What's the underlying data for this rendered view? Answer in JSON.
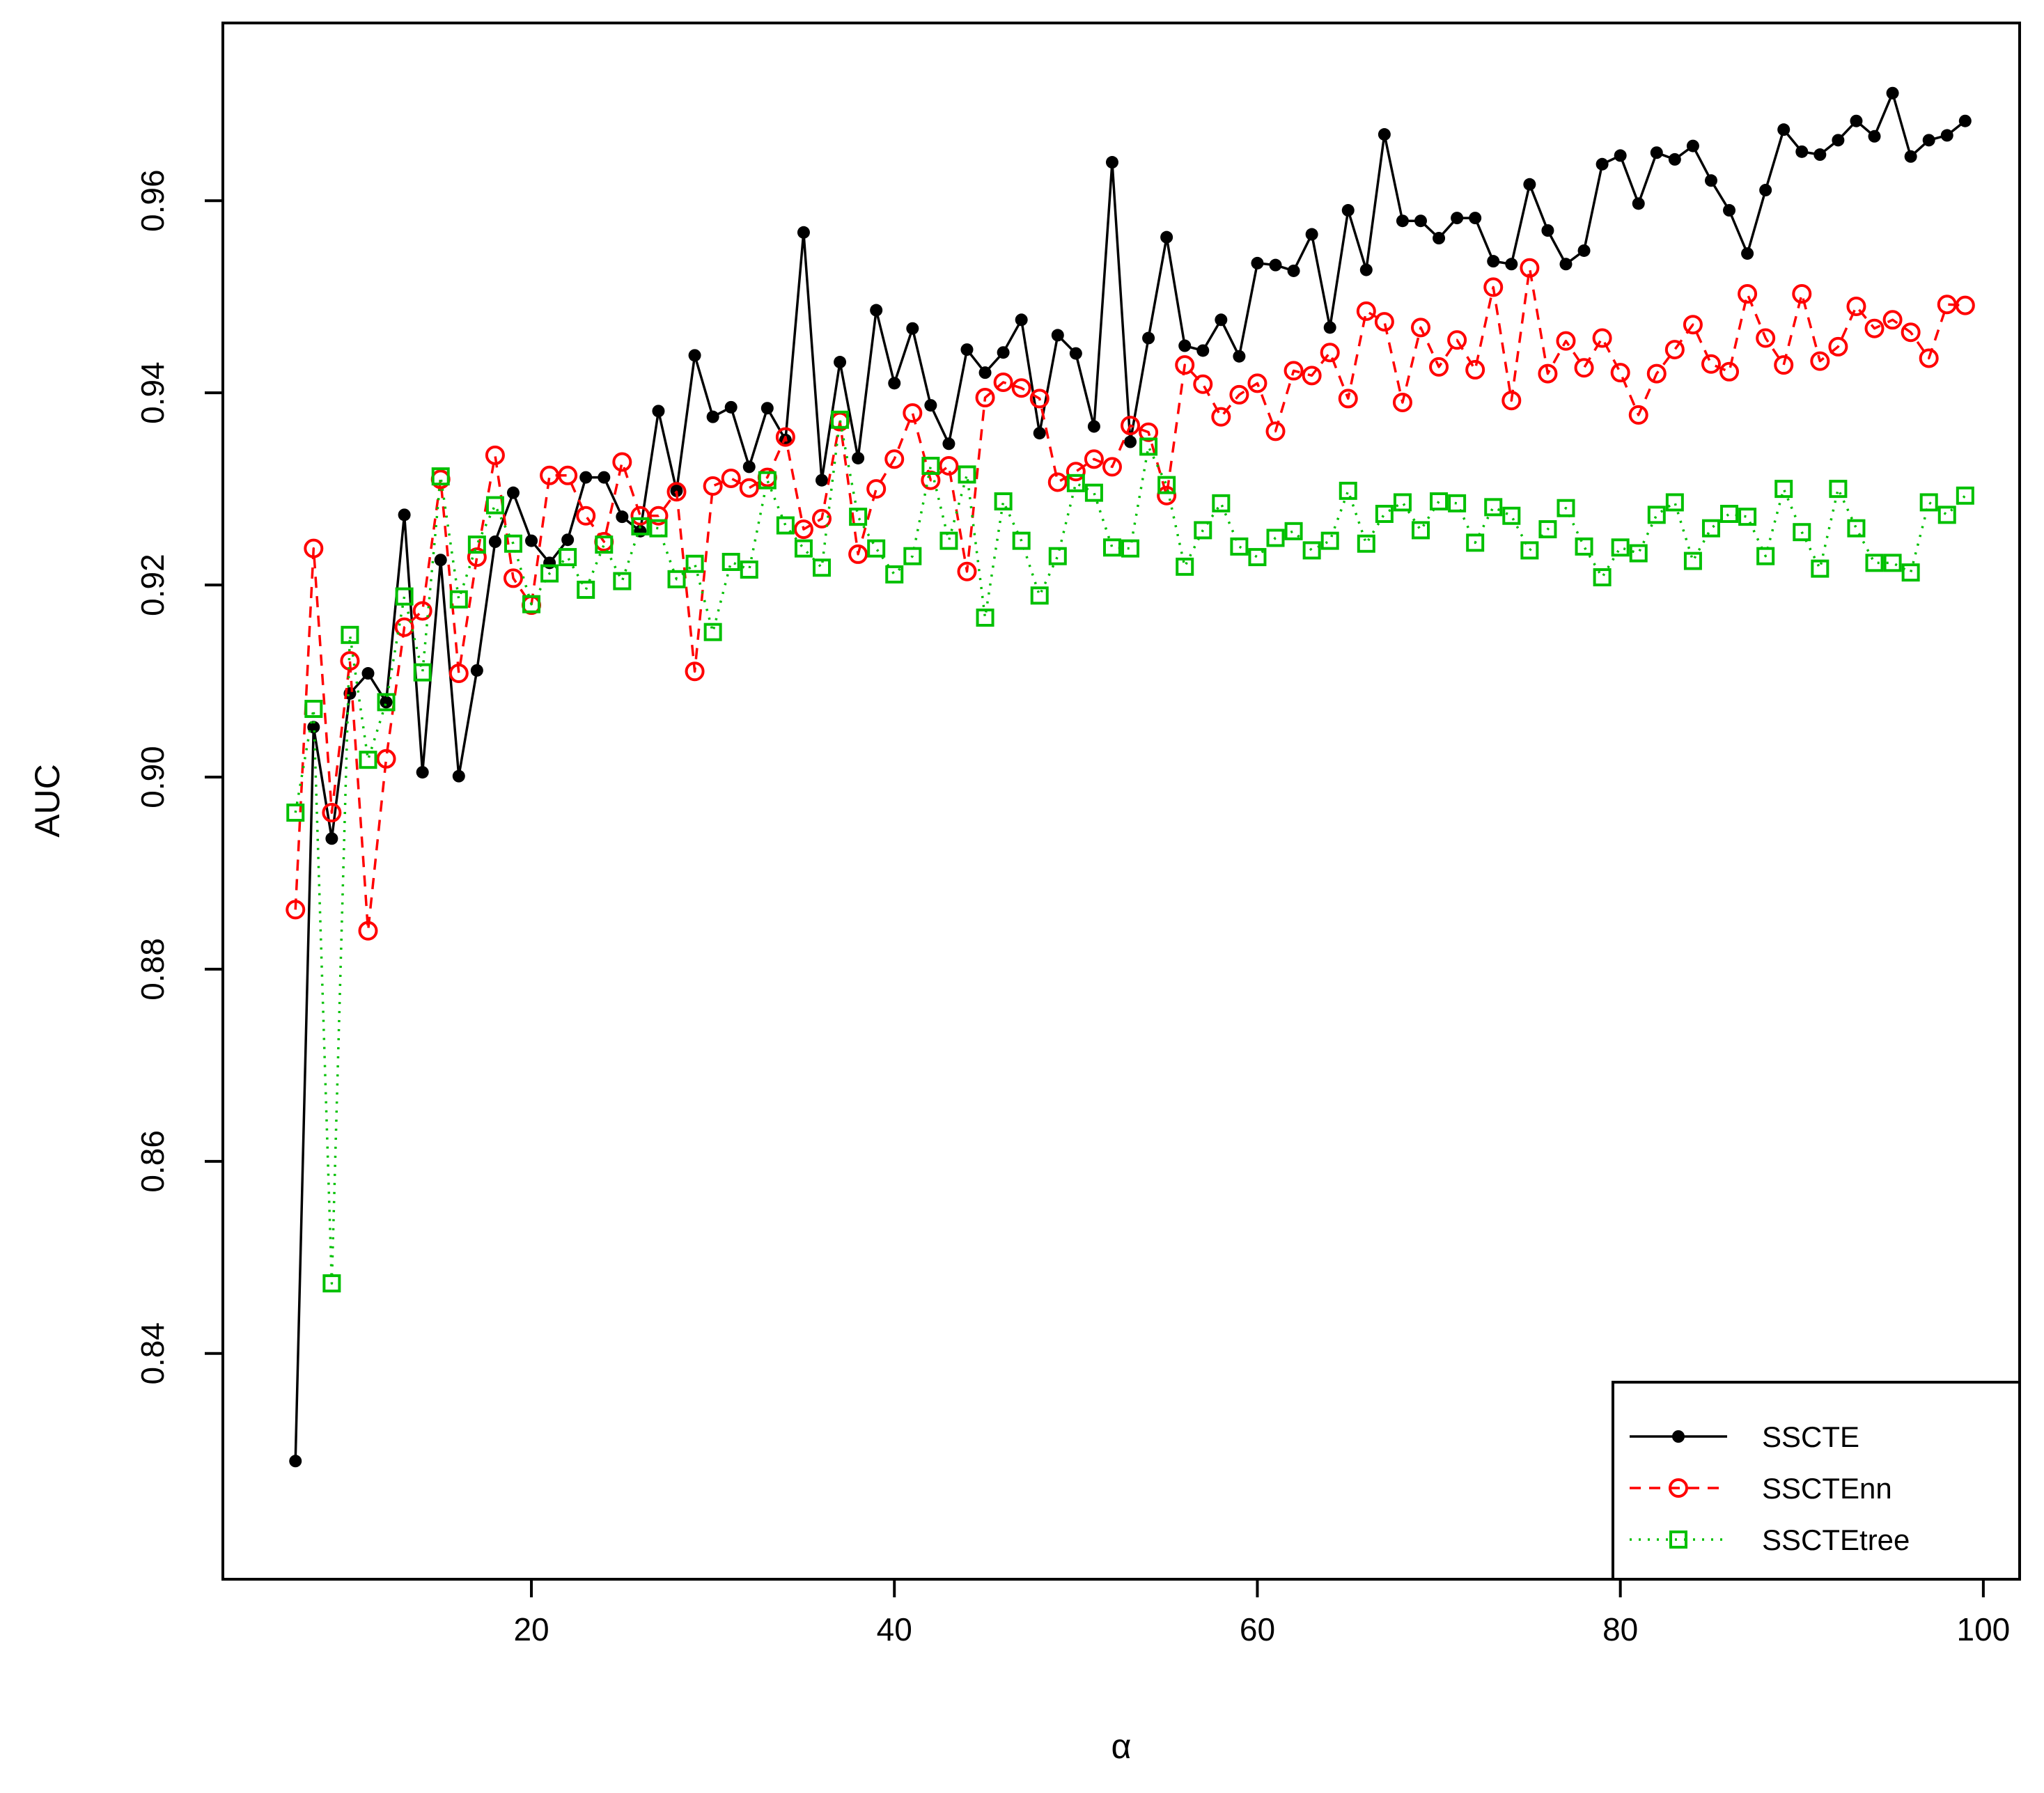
{
  "chart_data": {
    "type": "line",
    "xlabel": "α",
    "ylabel": "AUC",
    "xlim": [
      3,
      102
    ],
    "ylim": [
      0.8165,
      0.9785
    ],
    "xticks": [
      "20",
      "40",
      "60",
      "80",
      "100"
    ],
    "yticks": [
      "0.84",
      "0.86",
      "0.88",
      "0.90",
      "0.92",
      "0.94",
      "0.96"
    ],
    "legend_position": "bottom-right",
    "x": [
      7,
      8,
      9,
      10,
      11,
      12,
      13,
      14,
      15,
      16,
      17,
      18,
      19,
      20,
      21,
      22,
      23,
      24,
      25,
      26,
      27,
      28,
      29,
      30,
      31,
      32,
      33,
      34,
      35,
      36,
      37,
      38,
      39,
      40,
      41,
      42,
      43,
      44,
      45,
      46,
      47,
      48,
      49,
      50,
      51,
      52,
      53,
      54,
      55,
      56,
      57,
      58,
      59,
      60,
      61,
      62,
      63,
      64,
      65,
      66,
      67,
      68,
      69,
      70,
      71,
      72,
      73,
      74,
      75,
      76,
      77,
      78,
      79,
      80,
      81,
      82,
      83,
      84,
      85,
      86,
      87,
      88,
      89,
      90,
      91,
      92,
      93,
      94,
      95,
      96,
      97,
      98,
      99
    ],
    "series": [
      {
        "name": "SSCTE",
        "color": "#000000",
        "line": "solid",
        "marker": "filled-circle",
        "values": [
          0.8288,
          0.9052,
          0.8936,
          0.9087,
          0.9108,
          0.9078,
          0.9273,
          0.9005,
          0.9226,
          0.9001,
          0.9111,
          0.9245,
          0.9296,
          0.9246,
          0.9223,
          0.9247,
          0.9312,
          0.9312,
          0.9271,
          0.9256,
          0.9381,
          0.9298,
          0.9439,
          0.9375,
          0.9385,
          0.9323,
          0.9384,
          0.9351,
          0.9567,
          0.9309,
          0.9432,
          0.9332,
          0.9486,
          0.941,
          0.9467,
          0.9387,
          0.9347,
          0.9445,
          0.9421,
          0.9442,
          0.9476,
          0.9358,
          0.946,
          0.9441,
          0.9365,
          0.964,
          0.9349,
          0.9457,
          0.9562,
          0.9449,
          0.9444,
          0.9476,
          0.9438,
          0.9535,
          0.9533,
          0.9527,
          0.9565,
          0.9468,
          0.959,
          0.9528,
          0.9669,
          0.9579,
          0.9579,
          0.9561,
          0.9582,
          0.9582,
          0.9537,
          0.9534,
          0.9617,
          0.9569,
          0.9534,
          0.9548,
          0.9638,
          0.9647,
          0.9597,
          0.965,
          0.9643,
          0.9657,
          0.9621,
          0.959,
          0.9545,
          0.9611,
          0.9674,
          0.9651,
          0.9648,
          0.9663,
          0.9683,
          0.9667,
          0.9712,
          0.9646,
          0.9663,
          0.9668,
          0.9683
        ]
      },
      {
        "name": "SSCTEnn",
        "color": "#ff0000",
        "line": "dashed",
        "marker": "open-circle",
        "values": [
          0.8862,
          0.9238,
          0.8963,
          0.9121,
          0.884,
          0.9019,
          0.9156,
          0.9173,
          0.931,
          0.9108,
          0.9229,
          0.9335,
          0.9207,
          0.9179,
          0.9314,
          0.9314,
          0.9272,
          0.9245,
          0.9328,
          0.9272,
          0.9272,
          0.9297,
          0.911,
          0.9303,
          0.9311,
          0.9301,
          0.9312,
          0.9354,
          0.9258,
          0.9269,
          0.937,
          0.9232,
          0.93,
          0.9331,
          0.9379,
          0.9309,
          0.9324,
          0.9214,
          0.9395,
          0.9411,
          0.9405,
          0.9394,
          0.9307,
          0.9318,
          0.9331,
          0.9323,
          0.9366,
          0.9359,
          0.9293,
          0.9429,
          0.9409,
          0.9375,
          0.9398,
          0.941,
          0.936,
          0.9423,
          0.9418,
          0.9442,
          0.9394,
          0.9485,
          0.9474,
          0.939,
          0.9468,
          0.9427,
          0.9455,
          0.9424,
          0.951,
          0.9392,
          0.953,
          0.942,
          0.9454,
          0.9426,
          0.9457,
          0.9421,
          0.9377,
          0.942,
          0.9445,
          0.9471,
          0.943,
          0.9422,
          0.9503,
          0.9457,
          0.9429,
          0.9503,
          0.9433,
          0.9448,
          0.949,
          0.9467,
          0.9476,
          0.9463,
          0.9436,
          0.9492,
          0.9491
        ]
      },
      {
        "name": "SSCTEtree",
        "color": "#00c000",
        "line": "dotted",
        "marker": "open-square",
        "values": [
          0.8963,
          0.9071,
          0.8473,
          0.9148,
          0.9018,
          0.9078,
          0.9188,
          0.9109,
          0.9313,
          0.9185,
          0.9242,
          0.9283,
          0.9243,
          0.918,
          0.9212,
          0.9229,
          0.9195,
          0.9242,
          0.9204,
          0.9261,
          0.9259,
          0.9206,
          0.9222,
          0.9151,
          0.9224,
          0.9216,
          0.9309,
          0.9262,
          0.9238,
          0.9218,
          0.9372,
          0.9271,
          0.9238,
          0.9211,
          0.923,
          0.9324,
          0.9246,
          0.9315,
          0.9166,
          0.9287,
          0.9246,
          0.9189,
          0.923,
          0.9306,
          0.9296,
          0.9239,
          0.9238,
          0.9344,
          0.9304,
          0.9219,
          0.9257,
          0.9285,
          0.924,
          0.9229,
          0.9249,
          0.9256,
          0.9236,
          0.9246,
          0.9298,
          0.9243,
          0.9274,
          0.9286,
          0.9257,
          0.9287,
          0.9285,
          0.9244,
          0.9281,
          0.9272,
          0.9236,
          0.9258,
          0.928,
          0.924,
          0.9208,
          0.9239,
          0.9233,
          0.9273,
          0.9286,
          0.9225,
          0.9259,
          0.9274,
          0.9271,
          0.923,
          0.93,
          0.9255,
          0.9217,
          0.93,
          0.9259,
          0.9223,
          0.9223,
          0.9213,
          0.9286,
          0.9273,
          0.9293
        ]
      }
    ]
  }
}
